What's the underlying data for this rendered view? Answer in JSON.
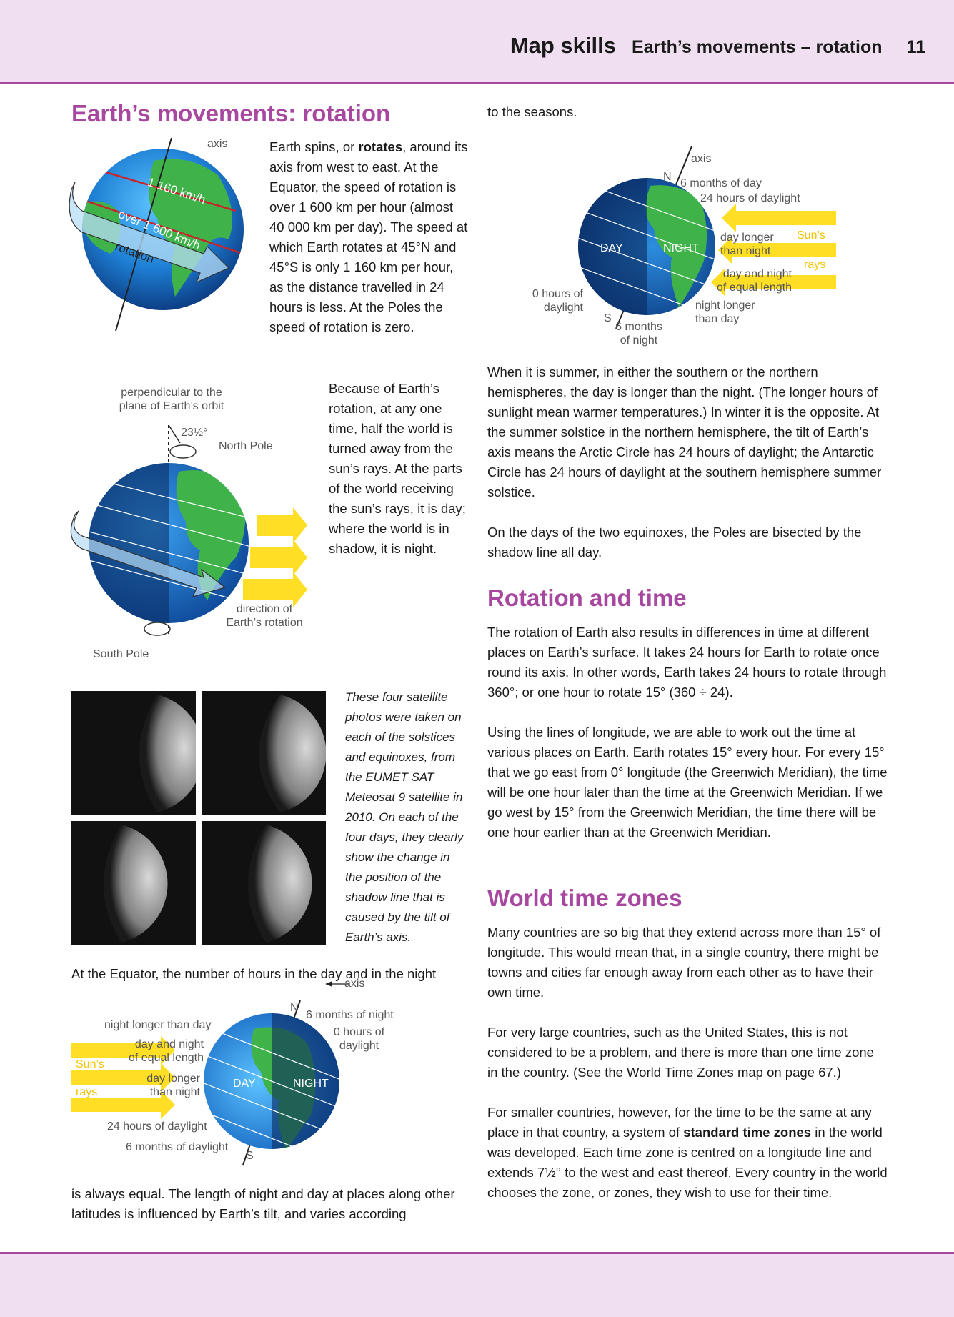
{
  "header": {
    "title": "Map skills",
    "subtitle": "Earth’s movements – rotation",
    "page_number": "11"
  },
  "section1": {
    "heading": "Earth’s movements: rotation",
    "para1_parts": [
      "Earth spins, or ",
      "rotates",
      ", around its axis from west to east. At the Equator, the speed of rotation is over 1 600 km per hour (almost 40 000 km per day). The speed at which Earth rotates at 45°N and 45°S is only 1 160 km per hour, as the distance travelled in 24 hours is less. At the Poles the speed of rotation is zero."
    ],
    "para2": "Because of Earth’s rotation, at any one time, half the world is turned away from the sun’s rays. At the parts of the world receiving the sun’s rays, it is day; where the world is in shadow, it is night."
  },
  "diagram1": {
    "axis": "axis",
    "speed_45": "1 160 km/h",
    "speed_equator": "over 1 600 km/h",
    "rotation": "rotation"
  },
  "diagram2": {
    "perpendicular": [
      "perpendicular to the",
      "plane of Earth’s orbit"
    ],
    "angle": "23½°",
    "north_pole": "North Pole",
    "direction": [
      "direction of",
      "Earth’s rotation"
    ],
    "south_pole": "South Pole"
  },
  "photos": {
    "caption": "These four satellite photos were taken on each of the solstices and equinoxes, from the EUMET SAT Meteosat 9 satellite in 2010. On each of the four days, they clearly show the change in the position of the shadow line that is caused by the tilt of Earth’s axis."
  },
  "left_bottom": {
    "para_top": "At the Equator, the number of hours in the day and in the night",
    "para_bottom": "is always equal. The length of night and day at places along other latitudes is influenced by Earth’s tilt, and varies according"
  },
  "diagram3": {
    "axis": "axis",
    "n": "N",
    "s": "S",
    "six_months_night": "6 months of night",
    "zero_daylight": [
      "0 hours of",
      "daylight"
    ],
    "night_longer": "night longer than day",
    "equal": [
      "day and night",
      "of equal length"
    ],
    "day_longer": [
      "day longer",
      "than night"
    ],
    "suns": "Sun’s",
    "rays": "rays",
    "day": "DAY",
    "night": "NIGHT",
    "daylight_24": "24 hours of daylight",
    "six_months_day": "6 months of daylight"
  },
  "right_top": {
    "para": "to the seasons."
  },
  "diagram4": {
    "axis": "axis",
    "n": "N",
    "s": "S",
    "six_months_day": "6 months of day",
    "daylight_24": "24 hours of daylight",
    "day": "DAY",
    "night": "NIGHT",
    "day_longer": [
      "day longer",
      "than night"
    ],
    "suns": "Sun’s",
    "rays": "rays",
    "equal": [
      "day and night",
      "of equal length"
    ],
    "zero_daylight": [
      "0 hours of",
      "daylight"
    ],
    "night_longer": [
      "night longer",
      "than day"
    ],
    "six_months_night": [
      "6 months",
      "of night"
    ]
  },
  "section_seasons": {
    "para1": "When it is summer, in either the southern or the northern hemispheres, the day is longer than the night. (The longer hours of sunlight mean warmer temperatures.) In winter it is the opposite. At the summer solstice in the northern hemisphere, the tilt of Earth’s axis means the Arctic Circle has 24 hours of daylight; the Antarctic Circle has 24 hours of daylight at the southern hemisphere summer solstice.",
    "para2": "On the days of the two equinoxes, the Poles are bisected by the shadow line all day."
  },
  "section_time": {
    "heading": "Rotation and time",
    "para1": "The rotation of Earth also results in differences in time at different places on Earth’s surface. It takes 24 hours for Earth to rotate once round its axis. In other words, Earth takes 24 hours to rotate through 360°; or one hour to rotate 15° (360 ÷ 24).",
    "para2": "Using the lines of longitude, we are able to work out the time at various places on Earth. Earth rotates 15° every hour. For every 15° that we go east from 0° longitude (the Greenwich Meridian), the time will be one hour later than the time at the Greenwich Meridian. If we go west by 15° from the Greenwich Meridian, the time there will be one hour earlier than at the Greenwich Meridian."
  },
  "section_zones": {
    "heading": "World time zones",
    "para1": "Many countries are so big that they extend across more than 15° of longitude. This would mean that, in a single country, there might be towns and cities far enough away from each other as to have their own time.",
    "para2": "For very large countries, such as the United States, this is not considered to be a problem, and there is more than one time zone in the country. (See the World Time Zones map on page 67.)",
    "para3_parts": [
      "For smaller countries, however, for the time to be the same at any place in that country, a system of ",
      "standard time zones",
      " in the world was developed. Each time zone is centred on a longitude line and extends 7½° to the west and east thereof. Every country in the world chooses the zone, or zones, they wish to use for their time."
    ]
  },
  "colors": {
    "heading": "#a7479f",
    "band": "#f0dff0",
    "sun": "#ffd800",
    "ocean": "#1e7fd4",
    "land": "#3fb34a"
  }
}
